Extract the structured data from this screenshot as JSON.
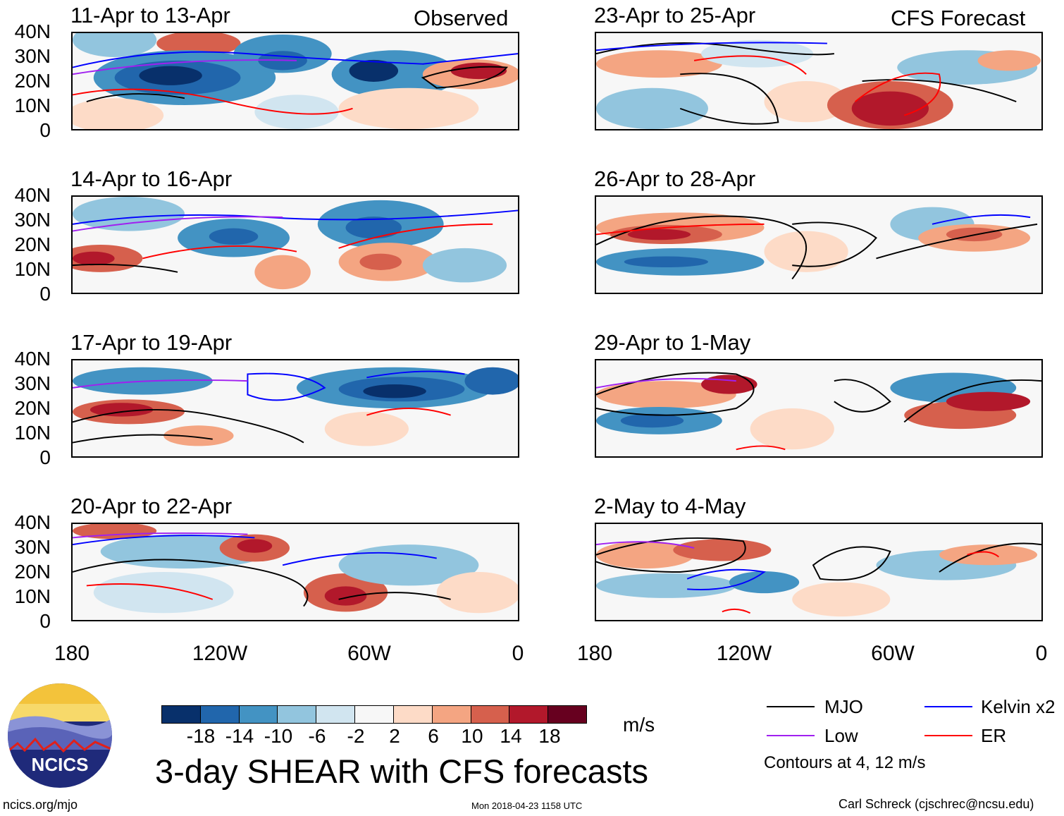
{
  "corner_labels": {
    "observed": "Observed",
    "forecast": "CFS Forecast"
  },
  "panels": [
    {
      "title": "11-Apr to 13-Apr",
      "type": "observed"
    },
    {
      "title": "14-Apr to 16-Apr",
      "type": "observed"
    },
    {
      "title": "17-Apr to 19-Apr",
      "type": "observed"
    },
    {
      "title": "20-Apr to 22-Apr",
      "type": "observed"
    },
    {
      "title": "23-Apr to 25-Apr",
      "type": "forecast"
    },
    {
      "title": "26-Apr to 28-Apr",
      "type": "forecast"
    },
    {
      "title": "29-Apr to 1-May",
      "type": "forecast"
    },
    {
      "title": "2-May to 4-May",
      "type": "forecast"
    }
  ],
  "y_axis_labels": [
    "40N",
    "30N",
    "20N",
    "10N",
    "0"
  ],
  "x_axis_labels": [
    "180",
    "120W",
    "60W",
    "0"
  ],
  "colorbar": {
    "colors": [
      "#08306b",
      "#2166ac",
      "#4393c3",
      "#92c5de",
      "#d1e5f0",
      "#f7f7f7",
      "#fddbc7",
      "#f4a582",
      "#d6604d",
      "#b2182b",
      "#67001f"
    ],
    "labels": [
      "-18",
      "-14",
      "-10",
      "-6",
      "-2",
      "2",
      "6",
      "10",
      "14",
      "18"
    ],
    "units": "m/s"
  },
  "legend": {
    "items": [
      {
        "label": "MJO",
        "color": "#000000"
      },
      {
        "label": "Kelvin x2",
        "color": "#0000ff"
      },
      {
        "label": "Low",
        "color": "#a020f0"
      },
      {
        "label": "ER",
        "color": "#ff0000"
      }
    ],
    "note": "Contours at 4, 12 m/s"
  },
  "logo_text": "NCICS",
  "title": "3-day SHEAR with CFS forecasts",
  "footer": {
    "left": "ncics.org/mjo",
    "center": "Mon 2018-04-23 1158 UTC",
    "right": "Carl Schreck (cjschrec@ncsu.edu)"
  }
}
